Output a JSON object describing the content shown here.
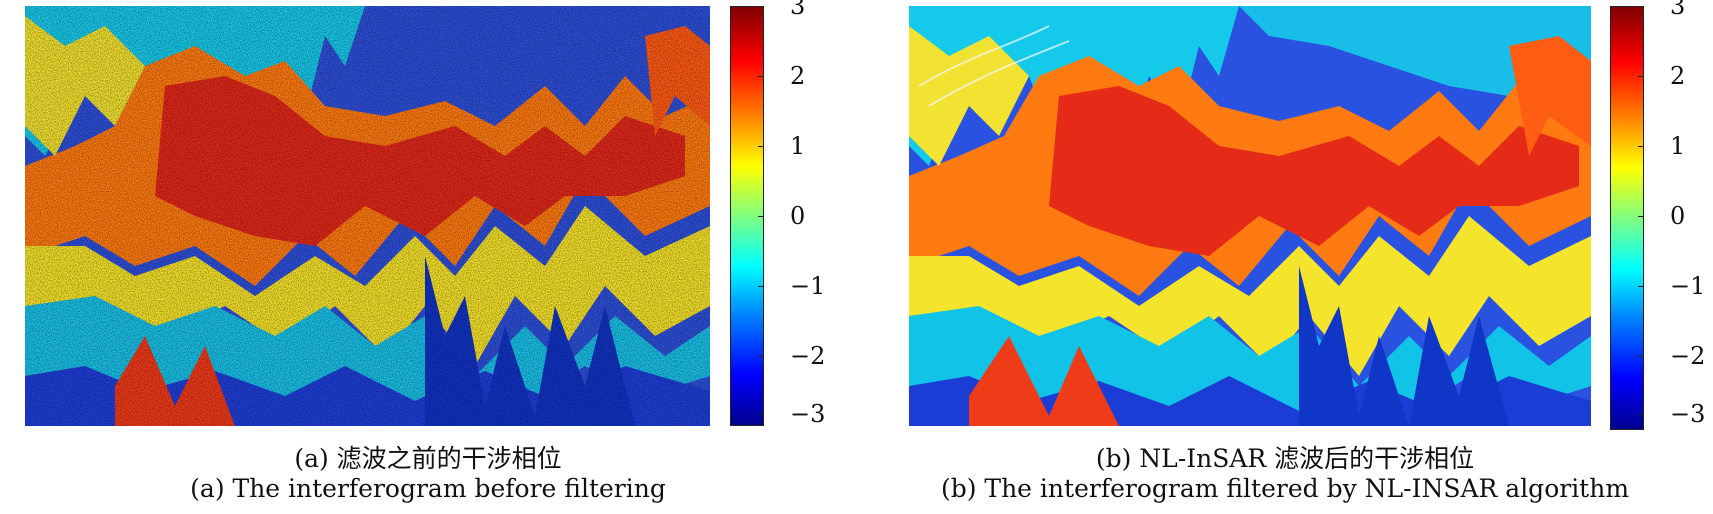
{
  "panels": [
    {
      "id": "a",
      "colorbar": {
        "min": -3,
        "max": 3,
        "ticks": [
          "3",
          "2",
          "1",
          "0",
          "−1",
          "−2",
          "−3"
        ]
      },
      "caption_cn": "(a) 滤波之前的干涉相位",
      "caption_en": "(a) The interferogram before filtering"
    },
    {
      "id": "b",
      "colorbar": {
        "min": -3,
        "max": 3,
        "ticks": [
          "3",
          "2",
          "1",
          "0",
          "−1",
          "−2",
          "−3"
        ]
      },
      "caption_cn": "(b) NL-InSAR 滤波后的干涉相位",
      "caption_en": "(b) The interferogram filtered by NL-INSAR algorithm"
    }
  ],
  "colors": {
    "colormap": [
      "#00008f",
      "#0000ff",
      "#0080ff",
      "#00ffff",
      "#80ff80",
      "#ffff00",
      "#ff8000",
      "#ff0000",
      "#800000"
    ]
  }
}
